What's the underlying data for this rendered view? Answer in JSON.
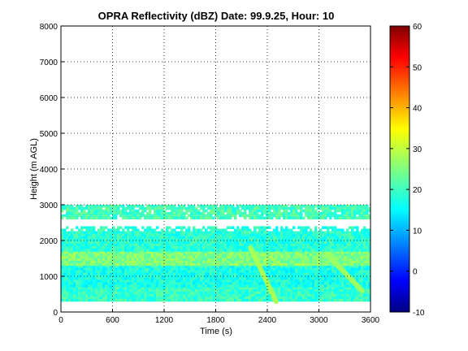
{
  "chart_data": {
    "type": "heatmap",
    "title": "OPRA Reflectivity (dBZ)  Date: 99.9.25, Hour: 10",
    "xlabel": "Time (s)",
    "ylabel": "Height (m AGL)",
    "xlim": [
      0,
      3600
    ],
    "ylim": [
      0,
      8000
    ],
    "xticks": [
      "0",
      "600",
      "1200",
      "1800",
      "2400",
      "3000",
      "3600"
    ],
    "yticks": [
      "0",
      "1000",
      "2000",
      "3000",
      "4000",
      "5000",
      "6000",
      "7000",
      "8000"
    ],
    "grid": "on",
    "colorbar": {
      "limits": [
        -10,
        60
      ],
      "ticks": [
        "-10",
        "0",
        "10",
        "20",
        "30",
        "40",
        "50",
        "60"
      ],
      "colormap": "jet"
    },
    "bands": [
      {
        "from_height": 300,
        "to_height": 700,
        "value_dbz": 20
      },
      {
        "from_height": 700,
        "to_height": 1300,
        "value_dbz": 18
      },
      {
        "from_height": 1300,
        "to_height": 1700,
        "value_dbz": 25
      },
      {
        "from_height": 1700,
        "to_height": 2400,
        "value_dbz": 19
      },
      {
        "from_height": 2600,
        "to_height": 3000,
        "value_dbz": 21
      }
    ],
    "features": [
      {
        "description": "descending streak",
        "time_start": 2200,
        "time_end": 2500,
        "height_start": 1800,
        "height_end": 300,
        "value_dbz": 28
      },
      {
        "description": "descending streak",
        "time_start": 3100,
        "time_end": 3500,
        "height_start": 1600,
        "height_end": 600,
        "value_dbz": 27
      }
    ]
  }
}
